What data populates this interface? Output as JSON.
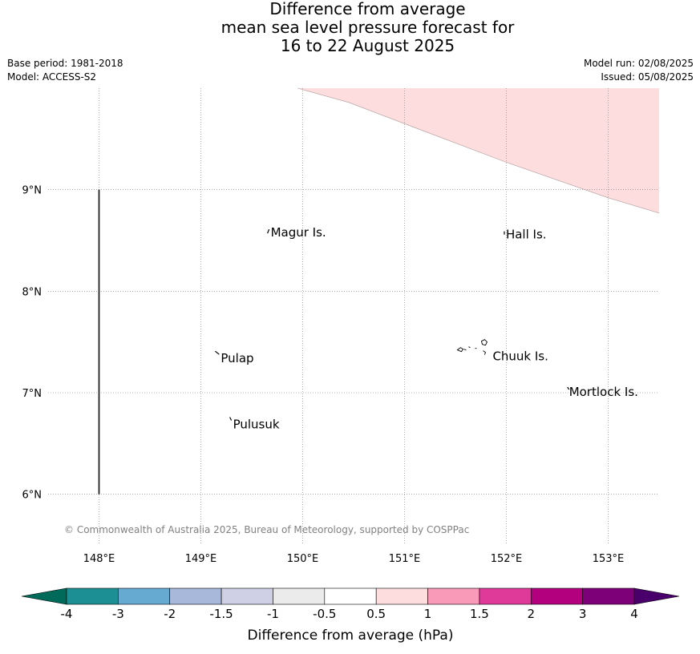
{
  "title": {
    "line1": "Difference from average",
    "line2": "mean sea level pressure forecast for",
    "line3": "16 to 22 August 2025"
  },
  "info": {
    "base_period": "Base period: 1981-2018",
    "model": "Model: ACCESS-S2",
    "model_run": "Model run: 02/08/2025",
    "issued": "Issued: 05/08/2025"
  },
  "map": {
    "lon_range": [
      147.5,
      153.5
    ],
    "lat_range": [
      5.5,
      10.0
    ],
    "lon_ticks": [
      {
        "value": 148,
        "label": "148°E"
      },
      {
        "value": 149,
        "label": "149°E"
      },
      {
        "value": 150,
        "label": "150°E"
      },
      {
        "value": 151,
        "label": "151°E"
      },
      {
        "value": 152,
        "label": "152°E"
      },
      {
        "value": 153,
        "label": "153°E"
      }
    ],
    "lat_ticks": [
      {
        "value": 9,
        "label": "9°N"
      },
      {
        "value": 8,
        "label": "8°N"
      },
      {
        "value": 7,
        "label": "7°N"
      },
      {
        "value": 6,
        "label": "6°N"
      }
    ],
    "places": [
      {
        "name": "Magur Is.",
        "lon": 149.67,
        "lat": 8.57
      },
      {
        "name": "Hall Is.",
        "lon": 151.98,
        "lat": 8.55
      },
      {
        "name": "Pulap",
        "lon": 149.18,
        "lat": 7.33
      },
      {
        "name": "Chuuk Is.",
        "lon": 151.85,
        "lat": 7.35
      },
      {
        "name": "Mortlock Is.",
        "lon": 152.6,
        "lat": 7.0
      },
      {
        "name": "Pulusuk",
        "lon": 149.3,
        "lat": 6.68
      }
    ],
    "boundary_line": {
      "lon": 148,
      "lat_from": 6,
      "lat_to": 9
    },
    "anomaly_band": {
      "range": "0.5 to 1 hPa",
      "color": "#fddddd",
      "edge": [
        [
          149.95,
          10.0
        ],
        [
          150.45,
          9.86
        ],
        [
          151.0,
          9.65
        ],
        [
          152.0,
          9.27
        ],
        [
          153.0,
          8.92
        ],
        [
          153.5,
          8.77
        ]
      ]
    },
    "copyright": "© Commonwealth of Australia 2025, Bureau of Meteorology, supported by COSPPac"
  },
  "colorbar": {
    "label": "Difference from average (hPa)",
    "ticks": [
      "-4",
      "-3",
      "-2",
      "-1.5",
      "-1",
      "-0.5",
      "0.5",
      "1",
      "1.5",
      "2",
      "3",
      "4"
    ],
    "colors": [
      "#1b8f93",
      "#66a9d1",
      "#a7b8db",
      "#cfd0e6",
      "#ebebeb",
      "#ffffff",
      "#fddddd",
      "#f99bb8",
      "#df3a9a",
      "#b2007f",
      "#7d0079"
    ],
    "under_color": "#006a5a",
    "over_color": "#4a006a"
  }
}
